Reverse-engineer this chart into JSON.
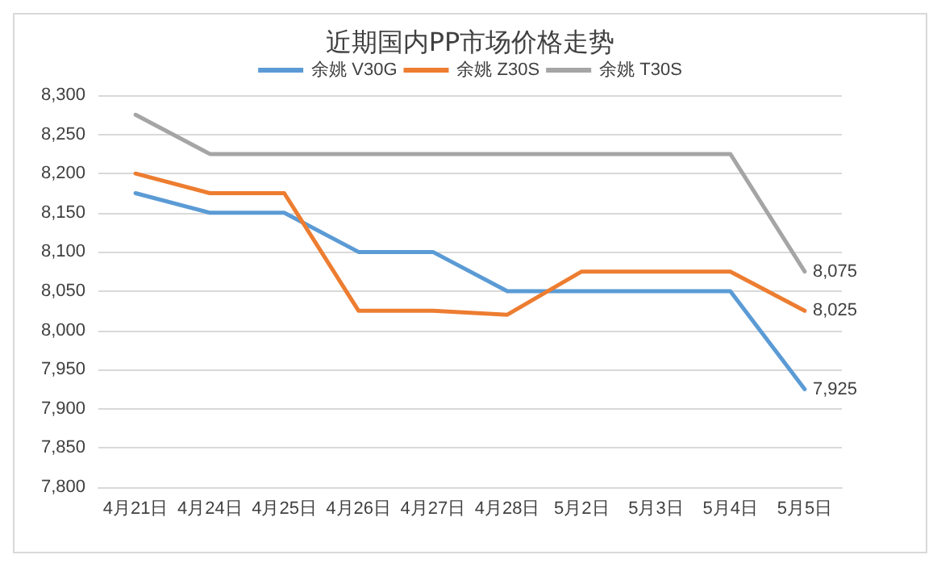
{
  "chart_data": {
    "type": "line",
    "title": "近期国内PP市场价格走势",
    "categories": [
      "4月21日",
      "4月24日",
      "4月25日",
      "4月26日",
      "4月27日",
      "4月28日",
      "5月2日",
      "5月3日",
      "5月4日",
      "5月5日"
    ],
    "series": [
      {
        "name": "余姚 V30G",
        "color": "#5b9bd5",
        "values": [
          8175,
          8150,
          8150,
          8100,
          8100,
          8050,
          8050,
          8050,
          8050,
          7925
        ],
        "value_labels": [
          null,
          null,
          null,
          null,
          null,
          null,
          null,
          null,
          null,
          "7,925"
        ]
      },
      {
        "name": "余姚 Z30S",
        "color": "#ed7d31",
        "values": [
          8200,
          8175,
          8175,
          8025,
          8025,
          8020,
          8075,
          8075,
          8075,
          8025
        ],
        "value_labels": [
          null,
          null,
          null,
          null,
          null,
          null,
          null,
          null,
          null,
          "8,025"
        ]
      },
      {
        "name": "余姚 T30S",
        "color": "#a5a5a5",
        "values": [
          8275,
          8225,
          8225,
          8225,
          8225,
          8225,
          8225,
          8225,
          8225,
          8075
        ],
        "value_labels": [
          null,
          null,
          null,
          null,
          null,
          null,
          null,
          null,
          null,
          "8,075"
        ]
      }
    ],
    "ylim": [
      7800,
      8300
    ],
    "yticks": [
      {
        "value": 7800,
        "label": "7,800"
      },
      {
        "value": 7850,
        "label": "7,850"
      },
      {
        "value": 7900,
        "label": "7,900"
      },
      {
        "value": 7950,
        "label": "7,950"
      },
      {
        "value": 8000,
        "label": "8,000"
      },
      {
        "value": 8050,
        "label": "8,050"
      },
      {
        "value": 8100,
        "label": "8,100"
      },
      {
        "value": 8150,
        "label": "8,150"
      },
      {
        "value": 8200,
        "label": "8,200"
      },
      {
        "value": 8250,
        "label": "8,250"
      },
      {
        "value": 8300,
        "label": "8,300"
      }
    ],
    "grid": "y",
    "legend": "top",
    "marker": "none",
    "line_style": "solid"
  }
}
